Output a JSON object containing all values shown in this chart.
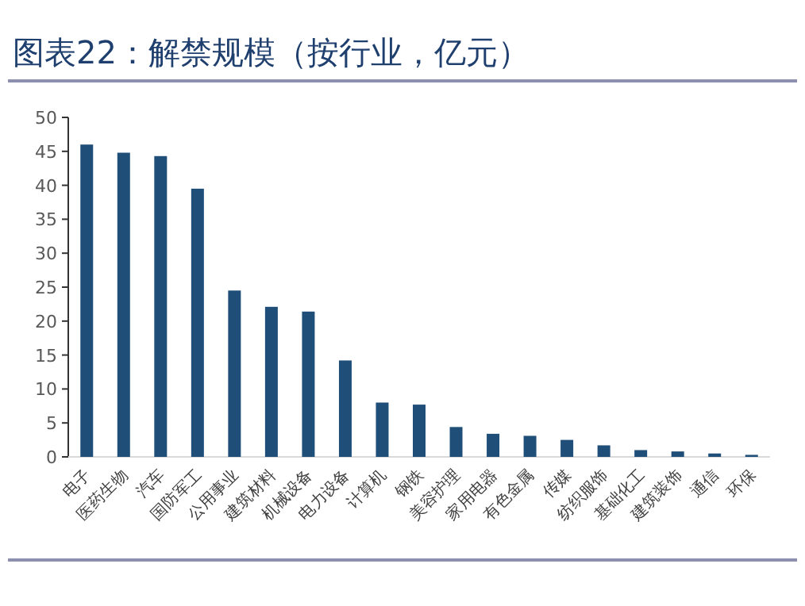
{
  "chart_data": {
    "type": "bar",
    "title": "图表22：解禁规模（按行业，亿元）",
    "categories": [
      "电子",
      "医药生物",
      "汽车",
      "国防军工",
      "公用事业",
      "建筑材料",
      "机械设备",
      "电力设备",
      "计算机",
      "钢铁",
      "美容护理",
      "家用电器",
      "有色金属",
      "传媒",
      "纺织服饰",
      "基础化工",
      "建筑装饰",
      "通信",
      "环保"
    ],
    "values": [
      46,
      44.8,
      44.3,
      39.5,
      24.5,
      22.1,
      21.4,
      14.2,
      8.0,
      7.7,
      4.4,
      3.4,
      3.1,
      2.5,
      1.7,
      1.0,
      0.8,
      0.5,
      0.3
    ],
    "color": "#1f4e79",
    "ylim": [
      0,
      50
    ],
    "yticks": [
      0,
      5,
      10,
      15,
      20,
      25,
      30,
      35,
      40,
      45,
      50
    ]
  }
}
